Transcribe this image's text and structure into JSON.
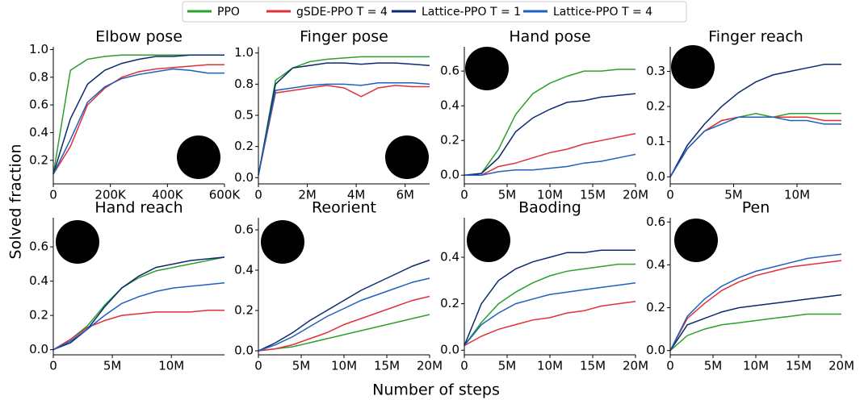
{
  "xlabel": "Number of steps",
  "ylabel": "Solved fraction",
  "chart_data": [
    {
      "type": "line",
      "title": "Elbow pose",
      "x": [
        0,
        60000,
        120000,
        180000,
        240000,
        300000,
        360000,
        420000,
        480000,
        540000,
        600000
      ],
      "xlim": [
        0,
        600000
      ],
      "ylim": [
        0.03,
        1.02
      ],
      "xticks": [
        0,
        {
          "value": 200000,
          "label": "200K"
        },
        {
          "value": 400000,
          "label": "400K"
        },
        {
          "value": 600000,
          "label": "600K"
        }
      ],
      "yticks": [
        0.2,
        0.4,
        0.6,
        0.8,
        {
          "value": 1,
          "label": "1.0"
        }
      ],
      "series": [
        {
          "name": "PPO",
          "color": "#2ca02c",
          "values": [
            0.1,
            0.85,
            0.93,
            0.95,
            0.96,
            0.96,
            0.96,
            0.96,
            0.96,
            0.96,
            0.96
          ]
        },
        {
          "name": "gSDE-PPO T = 4",
          "color": "#e0303a",
          "values": [
            0.1,
            0.3,
            0.6,
            0.72,
            0.8,
            0.84,
            0.86,
            0.87,
            0.88,
            0.89,
            0.89
          ]
        },
        {
          "name": "Lattice-PPO T = 1",
          "color": "#0b2a6e",
          "values": [
            0.1,
            0.5,
            0.75,
            0.85,
            0.9,
            0.93,
            0.95,
            0.95,
            0.96,
            0.96,
            0.96
          ]
        },
        {
          "name": "Lattice-PPO T = 4",
          "color": "#1f5fbf",
          "values": [
            0.1,
            0.35,
            0.62,
            0.73,
            0.79,
            0.82,
            0.84,
            0.86,
            0.85,
            0.83,
            0.83
          ]
        }
      ]
    },
    {
      "type": "line",
      "title": "Finger pose",
      "x": [
        0,
        700000,
        1400000,
        2100000,
        2800000,
        3500000,
        4200000,
        4900000,
        5600000,
        6300000,
        7000000
      ],
      "xlim": [
        0,
        7000000
      ],
      "ylim": [
        -0.05,
        1.05
      ],
      "xticks": [
        0,
        {
          "value": 2000000,
          "label": "2M"
        },
        {
          "value": 4000000,
          "label": "4M"
        },
        {
          "value": 6000000,
          "label": "6M"
        }
      ],
      "yticks": [
        {
          "value": 0,
          "label": "0.0"
        },
        {
          "value": 0.25,
          "label": "0.2"
        },
        0.5,
        {
          "value": 0.75,
          "label": "0.8"
        },
        {
          "value": 1,
          "label": "1.0"
        }
      ],
      "series": [
        {
          "color": "#2ca02c",
          "values": [
            0.02,
            0.78,
            0.88,
            0.93,
            0.95,
            0.96,
            0.97,
            0.97,
            0.97,
            0.97,
            0.97
          ]
        },
        {
          "color": "#e0303a",
          "values": [
            0.02,
            0.68,
            0.7,
            0.72,
            0.74,
            0.72,
            0.65,
            0.72,
            0.74,
            0.73,
            0.73
          ]
        },
        {
          "color": "#0b2a6e",
          "values": [
            0.02,
            0.75,
            0.88,
            0.9,
            0.92,
            0.92,
            0.91,
            0.92,
            0.92,
            0.91,
            0.9
          ]
        },
        {
          "color": "#1f5fbf",
          "values": [
            0.02,
            0.7,
            0.72,
            0.74,
            0.75,
            0.75,
            0.74,
            0.76,
            0.76,
            0.76,
            0.75
          ]
        }
      ]
    },
    {
      "type": "line",
      "title": "Hand pose",
      "x": [
        0,
        2000000,
        4000000,
        6000000,
        8000000,
        10000000,
        12000000,
        14000000,
        16000000,
        18000000,
        20000000
      ],
      "xlim": [
        0,
        20000000
      ],
      "ylim": [
        -0.05,
        0.74
      ],
      "xticks": [
        0,
        {
          "value": 5000000,
          "label": "5M"
        },
        {
          "value": 10000000,
          "label": "10M"
        },
        {
          "value": 15000000,
          "label": "15M"
        },
        {
          "value": 20000000,
          "label": "20M"
        }
      ],
      "yticks": [
        {
          "value": 0,
          "label": "0.0"
        },
        0.2,
        0.4,
        0.6
      ],
      "series": [
        {
          "color": "#2ca02c",
          "values": [
            0,
            0.01,
            0.15,
            0.35,
            0.47,
            0.53,
            0.57,
            0.6,
            0.6,
            0.61,
            0.61
          ]
        },
        {
          "color": "#e0303a",
          "values": [
            0,
            0,
            0.05,
            0.07,
            0.1,
            0.13,
            0.15,
            0.18,
            0.2,
            0.22,
            0.24
          ]
        },
        {
          "color": "#0b2a6e",
          "values": [
            0,
            0.01,
            0.1,
            0.25,
            0.33,
            0.38,
            0.42,
            0.43,
            0.45,
            0.46,
            0.47
          ]
        },
        {
          "color": "#1f5fbf",
          "values": [
            0,
            0,
            0.02,
            0.03,
            0.03,
            0.04,
            0.05,
            0.07,
            0.08,
            0.1,
            0.12
          ]
        }
      ]
    },
    {
      "type": "line",
      "title": "Finger reach",
      "x": [
        0,
        1350000,
        2700000,
        4050000,
        5400000,
        6750000,
        8100000,
        9450000,
        10800000,
        12150000,
        13500000
      ],
      "xlim": [
        0,
        13500000
      ],
      "ylim": [
        -0.02,
        0.37
      ],
      "xticks": [
        0,
        {
          "value": 5000000,
          "label": "5M"
        },
        {
          "value": 10000000,
          "label": "10M"
        }
      ],
      "yticks": [
        {
          "value": 0,
          "label": "0.0"
        },
        0.1,
        0.2,
        0.3
      ],
      "series": [
        {
          "color": "#2ca02c",
          "values": [
            0,
            0.08,
            0.13,
            0.16,
            0.17,
            0.18,
            0.17,
            0.18,
            0.18,
            0.18,
            0.18
          ]
        },
        {
          "color": "#e0303a",
          "values": [
            0,
            0.08,
            0.13,
            0.16,
            0.17,
            0.17,
            0.17,
            0.17,
            0.17,
            0.16,
            0.16
          ]
        },
        {
          "color": "#0b2a6e",
          "values": [
            0,
            0.09,
            0.15,
            0.2,
            0.24,
            0.27,
            0.29,
            0.3,
            0.31,
            0.32,
            0.32
          ]
        },
        {
          "color": "#1f5fbf",
          "values": [
            0,
            0.08,
            0.13,
            0.15,
            0.17,
            0.17,
            0.17,
            0.16,
            0.16,
            0.15,
            0.15
          ]
        }
      ]
    },
    {
      "type": "line",
      "title": "Hand reach",
      "x": [
        0,
        1450000,
        2900000,
        4350000,
        5800000,
        7250000,
        8700000,
        10150000,
        11600000,
        13050000,
        14500000
      ],
      "xlim": [
        0,
        14500000
      ],
      "ylim": [
        -0.03,
        0.77
      ],
      "xticks": [
        0,
        {
          "value": 5000000,
          "label": "5M"
        },
        {
          "value": 10000000,
          "label": "10M"
        }
      ],
      "yticks": [
        {
          "value": 0,
          "label": "0.0"
        },
        0.2,
        0.4,
        0.6
      ],
      "series": [
        {
          "color": "#2ca02c",
          "values": [
            0,
            0.06,
            0.14,
            0.26,
            0.36,
            0.42,
            0.46,
            0.48,
            0.5,
            0.52,
            0.54
          ]
        },
        {
          "color": "#e0303a",
          "values": [
            0,
            0.06,
            0.13,
            0.17,
            0.2,
            0.21,
            0.22,
            0.22,
            0.22,
            0.23,
            0.23
          ]
        },
        {
          "color": "#0b2a6e",
          "values": [
            0,
            0.04,
            0.12,
            0.25,
            0.36,
            0.43,
            0.48,
            0.5,
            0.52,
            0.53,
            0.54
          ]
        },
        {
          "color": "#1f5fbf",
          "values": [
            0,
            0.05,
            0.12,
            0.2,
            0.27,
            0.31,
            0.34,
            0.36,
            0.37,
            0.38,
            0.39
          ]
        }
      ]
    },
    {
      "type": "line",
      "title": "Reorient",
      "x": [
        0,
        2000000,
        4000000,
        6000000,
        8000000,
        10000000,
        12000000,
        14000000,
        16000000,
        18000000,
        20000000
      ],
      "xlim": [
        0,
        20000000
      ],
      "ylim": [
        -0.02,
        0.66
      ],
      "xticks": [
        0,
        {
          "value": 5000000,
          "label": "5M"
        },
        {
          "value": 10000000,
          "label": "10M"
        },
        {
          "value": 15000000,
          "label": "15M"
        },
        {
          "value": 20000000,
          "label": "20M"
        }
      ],
      "yticks": [
        {
          "value": 0,
          "label": "0.0"
        },
        0.2,
        0.4,
        0.6
      ],
      "series": [
        {
          "color": "#2ca02c",
          "values": [
            0,
            0.01,
            0.02,
            0.04,
            0.06,
            0.08,
            0.1,
            0.12,
            0.14,
            0.16,
            0.18
          ]
        },
        {
          "color": "#e0303a",
          "values": [
            0,
            0.01,
            0.03,
            0.06,
            0.09,
            0.13,
            0.16,
            0.19,
            0.22,
            0.25,
            0.27
          ]
        },
        {
          "color": "#0b2a6e",
          "values": [
            0,
            0.04,
            0.09,
            0.15,
            0.2,
            0.25,
            0.3,
            0.34,
            0.38,
            0.42,
            0.45
          ]
        },
        {
          "color": "#1f5fbf",
          "values": [
            0,
            0.03,
            0.07,
            0.12,
            0.17,
            0.21,
            0.25,
            0.28,
            0.31,
            0.34,
            0.36
          ]
        }
      ]
    },
    {
      "type": "line",
      "title": "Baoding",
      "x": [
        0,
        2000000,
        4000000,
        6000000,
        8000000,
        10000000,
        12000000,
        14000000,
        16000000,
        18000000,
        20000000
      ],
      "xlim": [
        0,
        20000000
      ],
      "ylim": [
        -0.02,
        0.57
      ],
      "xticks": [
        0,
        {
          "value": 5000000,
          "label": "5M"
        },
        {
          "value": 10000000,
          "label": "10M"
        },
        {
          "value": 15000000,
          "label": "15M"
        },
        {
          "value": 20000000,
          "label": "20M"
        }
      ],
      "yticks": [
        {
          "value": 0,
          "label": "0.0"
        },
        0.2,
        0.4
      ],
      "series": [
        {
          "color": "#2ca02c",
          "values": [
            0.02,
            0.12,
            0.2,
            0.25,
            0.29,
            0.32,
            0.34,
            0.35,
            0.36,
            0.37,
            0.37
          ]
        },
        {
          "color": "#e0303a",
          "values": [
            0.02,
            0.06,
            0.09,
            0.11,
            0.13,
            0.14,
            0.16,
            0.17,
            0.19,
            0.2,
            0.21
          ]
        },
        {
          "color": "#0b2a6e",
          "values": [
            0.02,
            0.2,
            0.3,
            0.35,
            0.38,
            0.4,
            0.42,
            0.42,
            0.43,
            0.43,
            0.43
          ]
        },
        {
          "color": "#1f5fbf",
          "values": [
            0.02,
            0.11,
            0.16,
            0.2,
            0.22,
            0.24,
            0.25,
            0.26,
            0.27,
            0.28,
            0.29
          ]
        }
      ]
    },
    {
      "type": "line",
      "title": "Pen",
      "x": [
        0,
        2000000,
        4000000,
        6000000,
        8000000,
        10000000,
        12000000,
        14000000,
        16000000,
        18000000,
        20000000
      ],
      "xlim": [
        0,
        20000000
      ],
      "ylim": [
        -0.02,
        0.62
      ],
      "xticks": [
        0,
        {
          "value": 5000000,
          "label": "5M"
        },
        {
          "value": 10000000,
          "label": "10M"
        },
        {
          "value": 15000000,
          "label": "15M"
        },
        {
          "value": 20000000,
          "label": "20M"
        }
      ],
      "yticks": [
        {
          "value": 0,
          "label": "0.0"
        },
        0.2,
        0.4,
        0.6
      ],
      "series": [
        {
          "color": "#2ca02c",
          "values": [
            0,
            0.07,
            0.1,
            0.12,
            0.13,
            0.14,
            0.15,
            0.16,
            0.17,
            0.17,
            0.17
          ]
        },
        {
          "color": "#e0303a",
          "values": [
            0,
            0.15,
            0.22,
            0.28,
            0.32,
            0.35,
            0.37,
            0.39,
            0.4,
            0.41,
            0.42
          ]
        },
        {
          "color": "#0b2a6e",
          "values": [
            0,
            0.12,
            0.15,
            0.18,
            0.2,
            0.21,
            0.22,
            0.23,
            0.24,
            0.25,
            0.26
          ]
        },
        {
          "color": "#1f5fbf",
          "values": [
            0,
            0.16,
            0.24,
            0.3,
            0.34,
            0.37,
            0.39,
            0.41,
            0.43,
            0.44,
            0.45
          ]
        }
      ]
    }
  ]
}
